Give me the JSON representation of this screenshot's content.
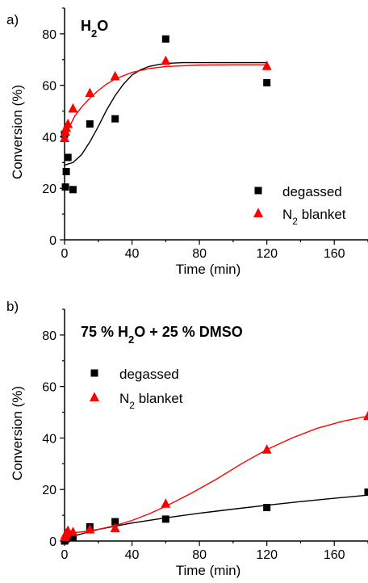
{
  "chart_data": [
    {
      "type": "scatter",
      "panel_label": "a)",
      "title_parts": [
        "H",
        "2",
        "O"
      ],
      "xlabel": "Time (min)",
      "ylabel": "Conversion (%)",
      "xlim": [
        0,
        180
      ],
      "ylim": [
        0,
        90
      ],
      "xticks": [
        "0",
        "40",
        "80",
        "120",
        "160"
      ],
      "yticks": [
        "0",
        "20",
        "40",
        "60",
        "80"
      ],
      "legend_position": "bottom-right",
      "series": [
        {
          "name": "degassed",
          "name_parts": [
            "degassed"
          ],
          "marker": "square",
          "color": "#000000",
          "x": [
            0,
            0.5,
            1,
            2,
            5,
            15,
            30,
            60,
            120
          ],
          "y": [
            41,
            20.5,
            26.5,
            32,
            19.5,
            45,
            47,
            78,
            61
          ],
          "fit_x": [
            0,
            5,
            10,
            15,
            20,
            25,
            30,
            35,
            40,
            45,
            50,
            55,
            60,
            70,
            80,
            100,
            120
          ],
          "fit_y": [
            29,
            30,
            33,
            38,
            44,
            50.5,
            56,
            60.5,
            64,
            66,
            67.3,
            68,
            68.5,
            68.8,
            68.8,
            68.8,
            68.8
          ]
        },
        {
          "name": "N2 blanket",
          "name_parts": [
            "N",
            "2",
            " blanket"
          ],
          "marker": "triangle",
          "color": "#ff0000",
          "x": [
            0,
            0.5,
            1,
            2,
            5,
            15,
            30,
            60,
            120
          ],
          "y": [
            39.5,
            42,
            43.5,
            45,
            51,
            57,
            63.5,
            69.5,
            67.5
          ],
          "fit_x": [
            0,
            3,
            6,
            10,
            15,
            20,
            25,
            30,
            40,
            50,
            60,
            80,
            100,
            120
          ],
          "fit_y": [
            40,
            44,
            48,
            51.5,
            55,
            58,
            60.5,
            62.5,
            65,
            66.5,
            67.3,
            67.9,
            68,
            68
          ]
        }
      ]
    },
    {
      "type": "scatter",
      "panel_label": "b)",
      "title_parts": [
        "75 % H",
        "2",
        "O + 25 % DMSO"
      ],
      "xlabel": "Time (min)",
      "ylabel": "Conversion (%)",
      "xlim": [
        0,
        180
      ],
      "ylim": [
        0,
        90
      ],
      "xticks": [
        "0",
        "40",
        "80",
        "120",
        "160"
      ],
      "yticks": [
        "0",
        "20",
        "40",
        "60",
        "80"
      ],
      "legend_position": "top-left",
      "series": [
        {
          "name": "degassed",
          "name_parts": [
            "degassed"
          ],
          "marker": "square",
          "color": "#000000",
          "x": [
            0,
            0.5,
            1,
            2,
            5,
            15,
            30,
            60,
            120,
            180
          ],
          "y": [
            0,
            0.5,
            1,
            2,
            1.5,
            5.5,
            7.5,
            8.5,
            13,
            19
          ],
          "fit_x": [
            0,
            20,
            40,
            60,
            80,
            100,
            120,
            140,
            160,
            180
          ],
          "fit_y": [
            1,
            4.5,
            7,
            9,
            10.8,
            12.4,
            13.9,
            15.3,
            16.6,
            17.8
          ]
        },
        {
          "name": "N2 blanket",
          "name_parts": [
            "N",
            "2",
            " blanket"
          ],
          "marker": "triangle",
          "color": "#ff0000",
          "x": [
            0,
            0.5,
            1,
            2,
            5,
            15,
            30,
            60,
            120,
            180
          ],
          "y": [
            1.5,
            2.5,
            3,
            4,
            3.5,
            4.5,
            5,
            14.5,
            35.5,
            48.5
          ],
          "fit_x": [
            0,
            10,
            20,
            30,
            40,
            50,
            60,
            75,
            90,
            105,
            120,
            135,
            150,
            165,
            180
          ],
          "fit_y": [
            3,
            3.5,
            4.5,
            6,
            8,
            10.5,
            13.5,
            18.5,
            24,
            30,
            35.5,
            40,
            43.8,
            46.5,
            48.5
          ]
        }
      ]
    }
  ]
}
